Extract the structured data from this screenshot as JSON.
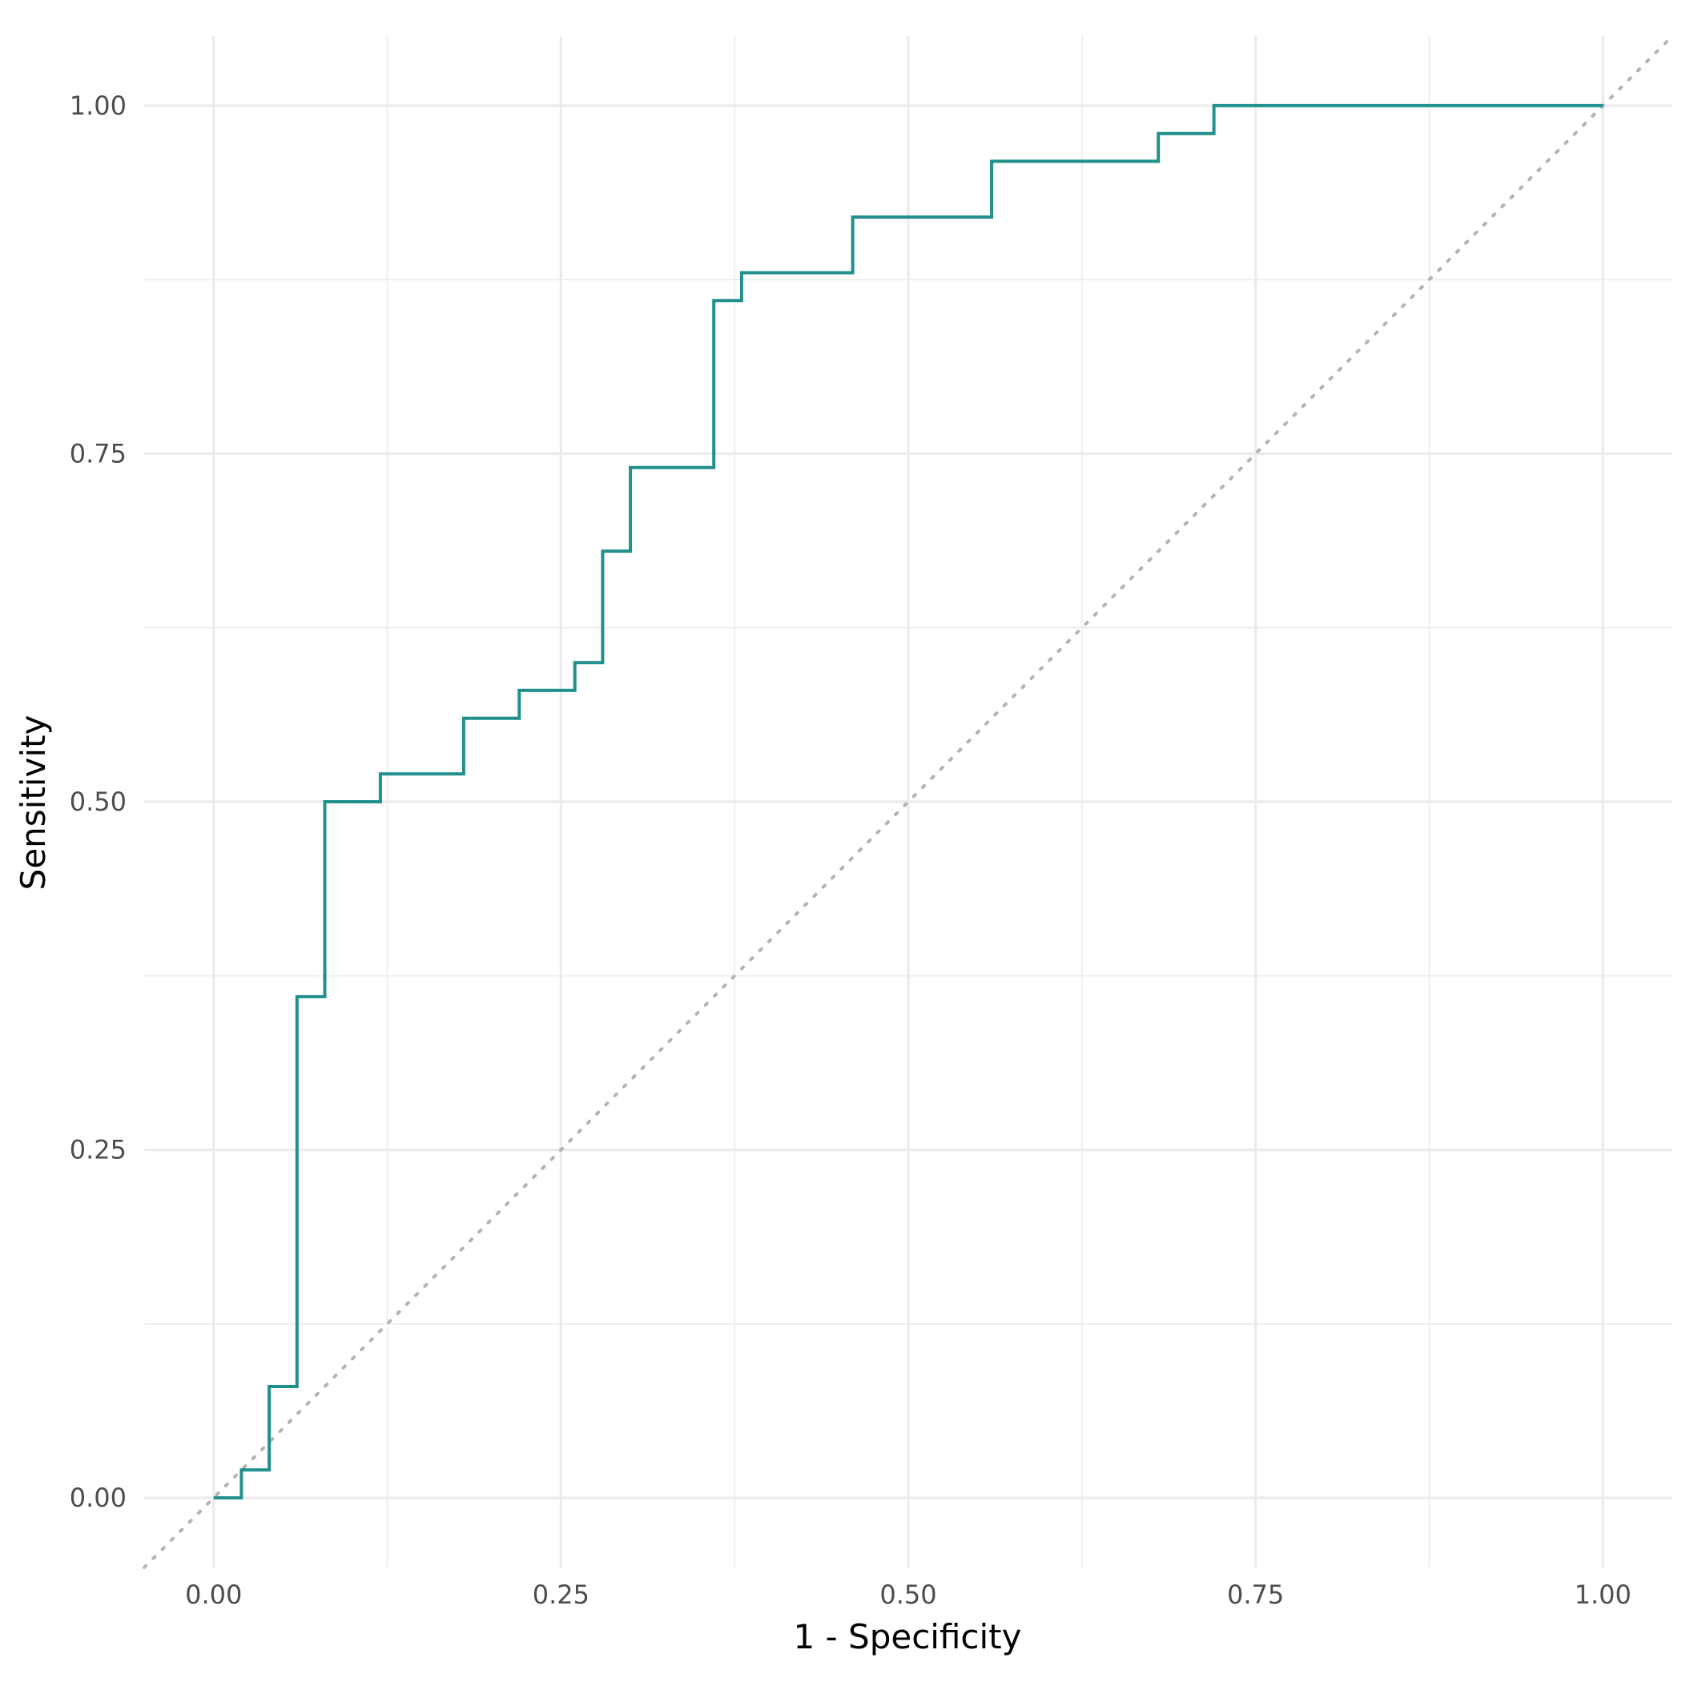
{
  "chart_data": {
    "type": "line",
    "xlabel": "1 - Specificity",
    "ylabel": "Sensitivity",
    "xlim": [
      -0.05,
      1.05
    ],
    "ylim": [
      -0.05,
      1.05
    ],
    "x_ticks": [
      0,
      0.25,
      0.5,
      0.75,
      1
    ],
    "x_tick_labels": [
      "0.00",
      "0.25",
      "0.50",
      "0.75",
      "1.00"
    ],
    "y_ticks": [
      0,
      0.25,
      0.5,
      0.75,
      1
    ],
    "y_tick_labels": [
      "0.00",
      "0.25",
      "0.50",
      "0.75",
      "1.00"
    ],
    "x_minor_ticks": [
      0.125,
      0.375,
      0.625,
      0.875
    ],
    "y_minor_ticks": [
      0.125,
      0.375,
      0.625,
      0.875
    ],
    "grid": true,
    "reference_line": {
      "style": "dotted",
      "color": "#b3b3b3",
      "from": [
        -0.05,
        -0.05
      ],
      "to": [
        1.05,
        1.05
      ]
    },
    "series": [
      {
        "color": "#21908c",
        "points": [
          [
            0.0,
            0.0
          ],
          [
            0.02,
            0.0
          ],
          [
            0.02,
            0.02
          ],
          [
            0.04,
            0.02
          ],
          [
            0.04,
            0.08
          ],
          [
            0.06,
            0.08
          ],
          [
            0.06,
            0.36
          ],
          [
            0.08,
            0.36
          ],
          [
            0.08,
            0.5
          ],
          [
            0.12,
            0.5
          ],
          [
            0.12,
            0.52
          ],
          [
            0.18,
            0.52
          ],
          [
            0.18,
            0.56
          ],
          [
            0.22,
            0.56
          ],
          [
            0.22,
            0.58
          ],
          [
            0.26,
            0.58
          ],
          [
            0.26,
            0.6
          ],
          [
            0.28,
            0.6
          ],
          [
            0.28,
            0.68
          ],
          [
            0.3,
            0.68
          ],
          [
            0.3,
            0.74
          ],
          [
            0.36,
            0.74
          ],
          [
            0.36,
            0.86
          ],
          [
            0.38,
            0.86
          ],
          [
            0.38,
            0.88
          ],
          [
            0.46,
            0.88
          ],
          [
            0.46,
            0.92
          ],
          [
            0.56,
            0.92
          ],
          [
            0.56,
            0.96
          ],
          [
            0.68,
            0.96
          ],
          [
            0.68,
            0.98
          ],
          [
            0.72,
            0.98
          ],
          [
            0.72,
            1.0
          ],
          [
            1.0,
            1.0
          ]
        ]
      }
    ]
  }
}
